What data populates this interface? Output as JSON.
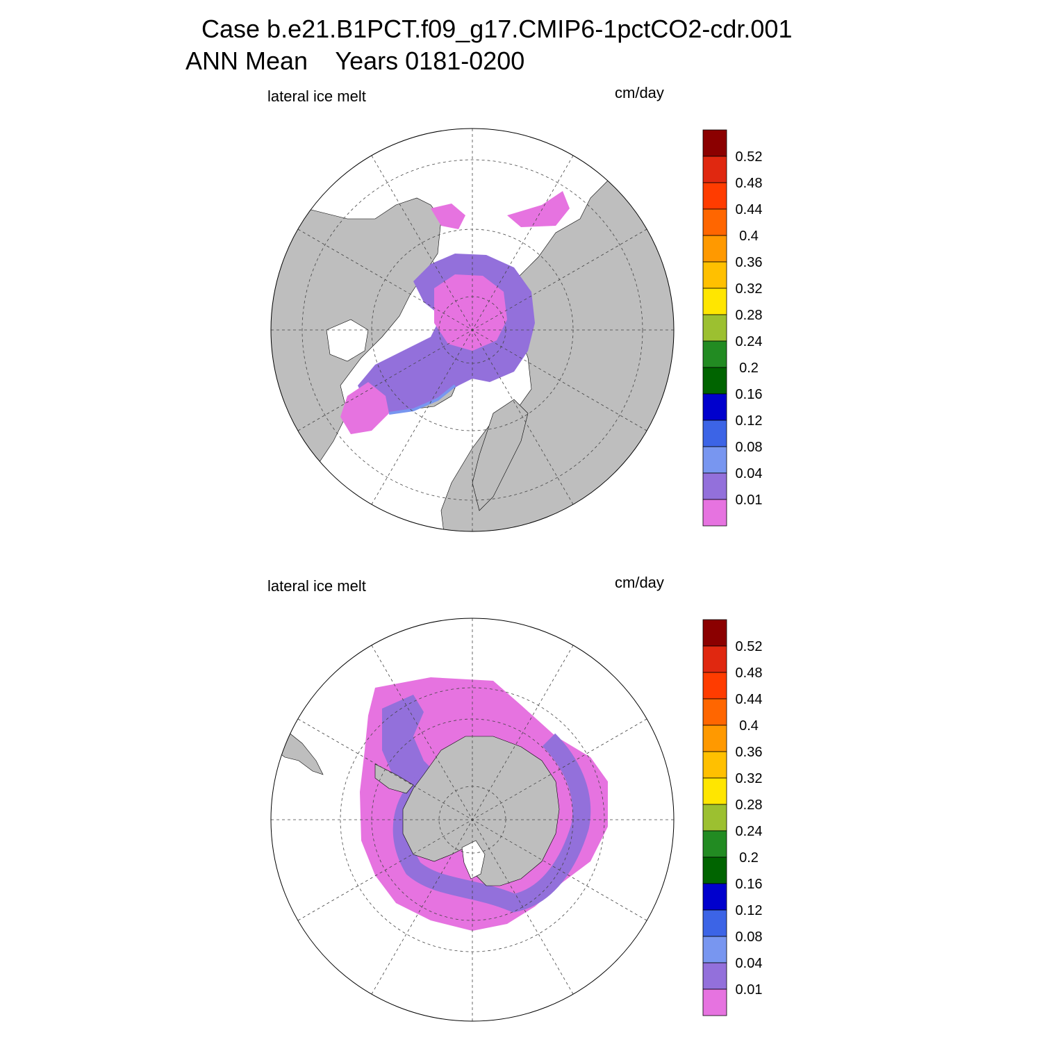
{
  "header": {
    "title_line_1": "Case b.e21.B1PCT.f09_g17.CMIP6-1pctCO2-cdr.001",
    "title_line_2": "ANN Mean    Years 0181-0200"
  },
  "panels": [
    {
      "id": "north",
      "hemisphere": "Northern",
      "left_label": "lateral ice melt",
      "units": "cm/day"
    },
    {
      "id": "south",
      "hemisphere": "Southern",
      "left_label": "lateral ice melt",
      "units": "cm/day"
    }
  ],
  "colorbar": {
    "levels": [
      "0.52",
      "0.48",
      "0.44",
      "0.4",
      "0.36",
      "0.32",
      "0.28",
      "0.24",
      "0.2",
      "0.16",
      "0.12",
      "0.08",
      "0.04",
      "0.01"
    ],
    "colors_top_to_bottom": [
      "#8b0000",
      "#e02810",
      "#ff3c00",
      "#ff6600",
      "#ff9900",
      "#ffc000",
      "#ffe600",
      "#9cc030",
      "#228b22",
      "#006400",
      "#0000cd",
      "#3c64e6",
      "#7896f0",
      "#9370db",
      "#e673e0"
    ]
  },
  "colors": {
    "land": "#bebebe",
    "ocean": "#ffffff",
    "ice_melt_low": "#e673e0",
    "ice_melt_mid": "#9370db",
    "ice_melt_edge": "#7896f0"
  }
}
